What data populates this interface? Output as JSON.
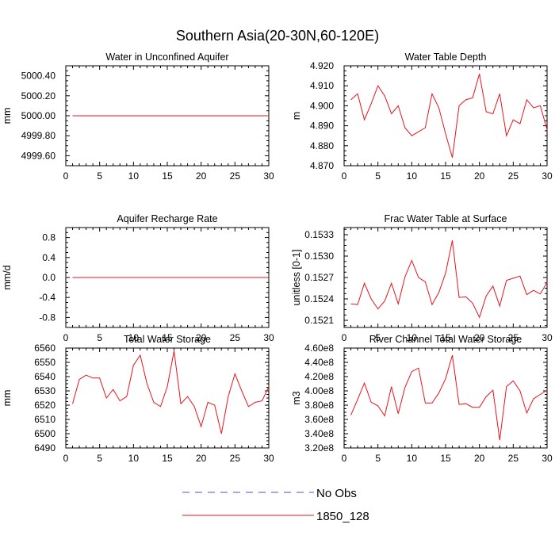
{
  "figure_title": "Southern Asia(20-30N,60-120E)",
  "legend": [
    {
      "label": "No Obs",
      "color": "#5050c8",
      "dash": true
    },
    {
      "label": "1850_128",
      "color": "#e8141e",
      "dash": false
    }
  ],
  "chart_data": [
    {
      "type": "line",
      "title": "Water in Unconfined Aquifer",
      "xlabel": "",
      "ylabel": "mm",
      "xlim": [
        0,
        30
      ],
      "ylim": [
        4999.5,
        5000.5
      ],
      "xticks": [
        0,
        5,
        10,
        15,
        20,
        25,
        30
      ],
      "yticks": [
        4999.6,
        4999.8,
        5000.0,
        5000.2,
        5000.4
      ],
      "ytick_labels": [
        "4999.60",
        "4999.80",
        "5000.00",
        "5000.20",
        "5000.40"
      ],
      "series": [
        {
          "name": "1850_128",
          "color": "#e8141e",
          "x": [
            1,
            2,
            3,
            4,
            5,
            6,
            7,
            8,
            9,
            10,
            11,
            12,
            13,
            14,
            15,
            16,
            17,
            18,
            19,
            20,
            21,
            22,
            23,
            24,
            25,
            26,
            27,
            28,
            29,
            30
          ],
          "y": [
            5000,
            5000,
            5000,
            5000,
            5000,
            5000,
            5000,
            5000,
            5000,
            5000,
            5000,
            5000,
            5000,
            5000,
            5000,
            5000,
            5000,
            5000,
            5000,
            5000,
            5000,
            5000,
            5000,
            5000,
            5000,
            5000,
            5000,
            5000,
            5000,
            5000
          ]
        }
      ]
    },
    {
      "type": "line",
      "title": "Water Table Depth",
      "xlabel": "",
      "ylabel": "m",
      "xlim": [
        0,
        30
      ],
      "ylim": [
        4.87,
        4.92
      ],
      "xticks": [
        0,
        5,
        10,
        15,
        20,
        25,
        30
      ],
      "yticks": [
        4.87,
        4.88,
        4.89,
        4.9,
        4.91,
        4.92
      ],
      "ytick_labels": [
        "4.870",
        "4.880",
        "4.890",
        "4.900",
        "4.910",
        "4.920"
      ],
      "series": [
        {
          "name": "1850_128",
          "color": "#e8141e",
          "x": [
            1,
            2,
            3,
            4,
            5,
            6,
            7,
            8,
            9,
            10,
            11,
            12,
            13,
            14,
            15,
            16,
            17,
            18,
            19,
            20,
            21,
            22,
            23,
            24,
            25,
            26,
            27,
            28,
            29,
            30
          ],
          "y": [
            4.903,
            4.906,
            4.893,
            4.901,
            4.91,
            4.905,
            4.896,
            4.9,
            4.889,
            4.885,
            4.887,
            4.889,
            4.906,
            4.899,
            4.886,
            4.874,
            4.9,
            4.903,
            4.904,
            4.916,
            4.897,
            4.896,
            4.906,
            4.885,
            4.893,
            4.891,
            4.903,
            4.899,
            4.9,
            4.888
          ]
        }
      ]
    },
    {
      "type": "line",
      "title": "Aquifer Recharge Rate",
      "xlabel": "",
      "ylabel": "mm/d",
      "xlim": [
        0,
        30
      ],
      "ylim": [
        -1.0,
        1.0
      ],
      "xticks": [
        0,
        5,
        10,
        15,
        20,
        25,
        30
      ],
      "yticks": [
        -0.8,
        -0.4,
        0.0,
        0.4,
        0.8
      ],
      "ytick_labels": [
        "-0.8",
        "-0.4",
        "0.0",
        "0.4",
        "0.8"
      ],
      "series": [
        {
          "name": "1850_128",
          "color": "#e8141e",
          "x": [
            1,
            2,
            3,
            4,
            5,
            6,
            7,
            8,
            9,
            10,
            11,
            12,
            13,
            14,
            15,
            16,
            17,
            18,
            19,
            20,
            21,
            22,
            23,
            24,
            25,
            26,
            27,
            28,
            29,
            30
          ],
          "y": [
            0,
            0,
            0,
            0,
            0,
            0,
            0,
            0,
            0,
            0,
            0,
            0,
            0,
            0,
            0,
            0,
            0,
            0,
            0,
            0,
            0,
            0,
            0,
            0,
            0,
            0,
            0,
            0,
            0,
            0
          ]
        }
      ]
    },
    {
      "type": "line",
      "title": "Frac Water Table at Surface",
      "xlabel": "",
      "ylabel": "unitless [0-1]",
      "xlim": [
        0,
        30
      ],
      "ylim": [
        0.152,
        0.1534
      ],
      "xticks": [
        0,
        5,
        10,
        15,
        20,
        25,
        30
      ],
      "yticks": [
        0.1521,
        0.1524,
        0.1527,
        0.153,
        0.1533
      ],
      "ytick_labels": [
        "0.1521",
        "0.1524",
        "0.1527",
        "0.1530",
        "0.1533"
      ],
      "series": [
        {
          "name": "1850_128",
          "color": "#e8141e",
          "x": [
            1,
            2,
            3,
            4,
            5,
            6,
            7,
            8,
            9,
            10,
            11,
            12,
            13,
            14,
            15,
            16,
            17,
            18,
            19,
            20,
            21,
            22,
            23,
            24,
            25,
            26,
            27,
            28,
            29,
            30
          ],
          "y": [
            0.15233,
            0.15232,
            0.15262,
            0.1524,
            0.15226,
            0.15237,
            0.15262,
            0.15233,
            0.15271,
            0.15294,
            0.1527,
            0.15264,
            0.15232,
            0.15249,
            0.15276,
            0.15322,
            0.15242,
            0.15243,
            0.15234,
            0.15214,
            0.15244,
            0.15258,
            0.1523,
            0.15266,
            0.15269,
            0.15272,
            0.15246,
            0.15252,
            0.15247,
            0.15263
          ]
        }
      ]
    },
    {
      "type": "line",
      "title": "Total Water Storage",
      "xlabel": "",
      "ylabel": "mm",
      "xlim": [
        0,
        30
      ],
      "ylim": [
        6490,
        6560
      ],
      "xticks": [
        0,
        5,
        10,
        15,
        20,
        25,
        30
      ],
      "yticks": [
        6490,
        6500,
        6510,
        6520,
        6530,
        6540,
        6550,
        6560
      ],
      "ytick_labels": [
        "6490",
        "6500",
        "6510",
        "6520",
        "6530",
        "6540",
        "6550",
        "6560"
      ],
      "series": [
        {
          "name": "1850_128",
          "color": "#e8141e",
          "x": [
            1,
            2,
            3,
            4,
            5,
            6,
            7,
            8,
            9,
            10,
            11,
            12,
            13,
            14,
            15,
            16,
            17,
            18,
            19,
            20,
            21,
            22,
            23,
            24,
            25,
            26,
            27,
            28,
            29,
            30
          ],
          "y": [
            6521,
            6538,
            6541,
            6539,
            6539,
            6525,
            6531,
            6523,
            6526,
            6548,
            6555,
            6535,
            6522,
            6519,
            6533,
            6558,
            6521,
            6526,
            6519,
            6505,
            6522,
            6520,
            6500,
            6526,
            6542,
            6530,
            6519,
            6522,
            6523,
            6533
          ]
        }
      ]
    },
    {
      "type": "line",
      "title": "River Channel Total Water Storage",
      "xlabel": "",
      "ylabel": "m3",
      "xlim": [
        0,
        30
      ],
      "ylim": [
        320000000,
        460000000
      ],
      "xticks": [
        0,
        5,
        10,
        15,
        20,
        25,
        30
      ],
      "yticks": [
        320000000,
        340000000,
        360000000,
        380000000,
        400000000,
        420000000,
        440000000,
        460000000
      ],
      "ytick_labels": [
        "3.20e8",
        "3.40e8",
        "3.60e8",
        "3.80e8",
        "4.00e8",
        "4.20e8",
        "4.40e8",
        "4.60e8"
      ],
      "series": [
        {
          "name": "1850_128",
          "color": "#e8141e",
          "x": [
            1,
            2,
            3,
            4,
            5,
            6,
            7,
            8,
            9,
            10,
            11,
            12,
            13,
            14,
            15,
            16,
            17,
            18,
            19,
            20,
            21,
            22,
            23,
            24,
            25,
            26,
            27,
            28,
            29,
            30
          ],
          "y": [
            366000000,
            388000000,
            411000000,
            384000000,
            379000000,
            365000000,
            406000000,
            368000000,
            405000000,
            427000000,
            432000000,
            383000000,
            383000000,
            397000000,
            417000000,
            450000000,
            381000000,
            382000000,
            377000000,
            377000000,
            392000000,
            401000000,
            331000000,
            406000000,
            414000000,
            400000000,
            369000000,
            389000000,
            395000000,
            401000000
          ]
        }
      ]
    }
  ]
}
